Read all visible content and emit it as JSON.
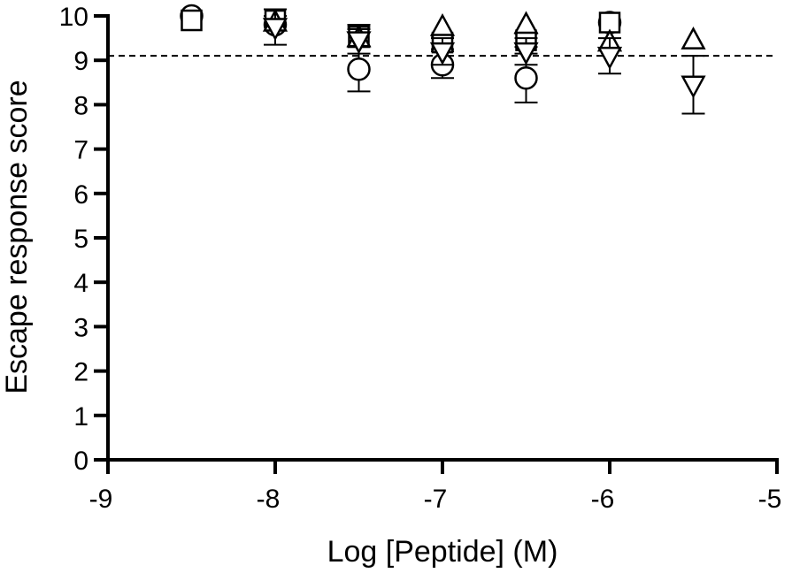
{
  "chart_data": {
    "type": "scatter",
    "title": "",
    "xlabel": "Log [Peptide] (M)",
    "ylabel": "Escape response score",
    "xlim": [
      -9,
      -5
    ],
    "ylim": [
      0,
      10
    ],
    "xticks": [
      -9,
      -8,
      -7,
      -6,
      -5
    ],
    "xtick_labels": [
      "-9",
      "-8",
      "-7",
      "-6",
      "-5"
    ],
    "yticks": [
      0,
      1,
      2,
      3,
      4,
      5,
      6,
      7,
      8,
      9,
      10
    ],
    "ytick_labels": [
      "0",
      "1",
      "2",
      "3",
      "4",
      "5",
      "6",
      "7",
      "8",
      "9",
      "10"
    ],
    "grid": false,
    "legend": "none",
    "reference_line": {
      "y": 9.1,
      "style": "dashed"
    },
    "series": [
      {
        "marker": "circle",
        "points": [
          {
            "x": -8.5,
            "y": 10.0,
            "err": 0
          },
          {
            "x": -8.0,
            "y": 9.8,
            "err": 0
          },
          {
            "x": -7.5,
            "y": 8.8,
            "err": 0.5
          },
          {
            "x": -7.0,
            "y": 8.9,
            "err": 0.3
          },
          {
            "x": -6.5,
            "y": 8.6,
            "err": 0.55
          },
          {
            "x": -6.0,
            "y": 9.85,
            "err": 0
          }
        ]
      },
      {
        "marker": "square",
        "points": [
          {
            "x": -8.5,
            "y": 9.9,
            "err": 0
          },
          {
            "x": -8.0,
            "y": 9.9,
            "err": 0.1
          },
          {
            "x": -7.5,
            "y": 9.55,
            "err": 0.25
          },
          {
            "x": -7.0,
            "y": 9.4,
            "err": 0.15
          },
          {
            "x": -6.5,
            "y": 9.45,
            "err": 0.15
          },
          {
            "x": -6.0,
            "y": 9.85,
            "err": 0
          }
        ]
      },
      {
        "marker": "triangle-up",
        "points": [
          {
            "x": -8.0,
            "y": 9.85,
            "err": 0
          },
          {
            "x": -7.5,
            "y": 9.5,
            "err": 0.2
          },
          {
            "x": -7.0,
            "y": 9.75,
            "err": 0
          },
          {
            "x": -6.5,
            "y": 9.8,
            "err": 0
          },
          {
            "x": -6.0,
            "y": 9.4,
            "err": 0
          },
          {
            "x": -5.5,
            "y": 9.45,
            "err": 0
          }
        ]
      },
      {
        "marker": "triangle-down",
        "points": [
          {
            "x": -8.0,
            "y": 9.75,
            "err": 0.4
          },
          {
            "x": -7.5,
            "y": 9.45,
            "err": 0.3
          },
          {
            "x": -7.0,
            "y": 9.2,
            "err": 0.3
          },
          {
            "x": -6.5,
            "y": 9.2,
            "err": 0.3
          },
          {
            "x": -6.0,
            "y": 9.1,
            "err": 0.4
          },
          {
            "x": -5.5,
            "y": 8.45,
            "err": 0.65
          }
        ]
      }
    ]
  }
}
